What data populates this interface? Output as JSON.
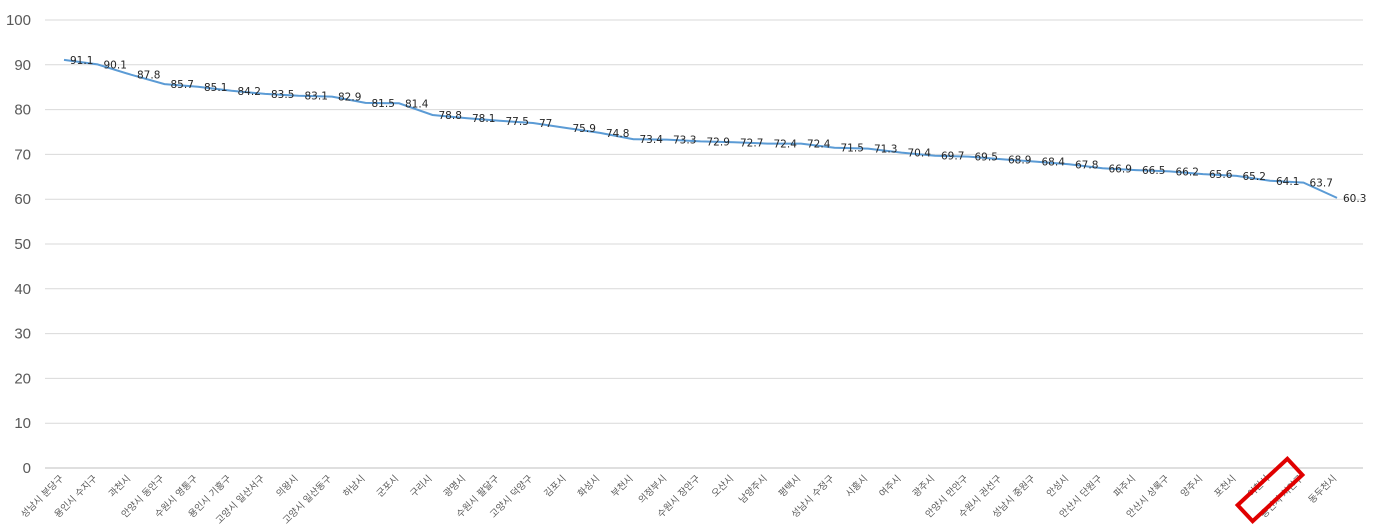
{
  "chart_data": {
    "type": "line",
    "categories": [
      "성남시 분당구",
      "용인시 수지구",
      "과천시",
      "안양시 동안구",
      "수원시 영통구",
      "용인시 기흥구",
      "고양시 일산서구",
      "의왕시",
      "고양시 일산동구",
      "하남시",
      "군포시",
      "구리시",
      "광명시",
      "수원시 팔달구",
      "고양시 덕양구",
      "김포시",
      "화성시",
      "부천시",
      "의정부시",
      "수원시 장안구",
      "오산시",
      "남양주시",
      "평택시",
      "성남시 수정구",
      "시흥시",
      "여주시",
      "광주시",
      "안양시 만안구",
      "수원시 권선구",
      "성남시 중원구",
      "안성시",
      "안산시 단원구",
      "파주시",
      "안산시 상록구",
      "양주시",
      "포천시",
      "이천시",
      "용인시 처인구",
      "동두천시"
    ],
    "series": [
      {
        "values": [
          91.1,
          90.1,
          87.8,
          85.7,
          85.1,
          84.2,
          83.5,
          83.1,
          82.9,
          81.5,
          81.4,
          78.8,
          78.1,
          77.5,
          77,
          75.9,
          74.8,
          73.4,
          73.3,
          72.9,
          72.7,
          72.4,
          72.4,
          71.5,
          71.3,
          70.4,
          69.7,
          69.5,
          68.9,
          68.4,
          67.8,
          66.9,
          66.5,
          66.2,
          65.6,
          65.2,
          64.1,
          63.7,
          60.3
        ],
        "color": "#5b9bd5"
      }
    ],
    "yticks": [
      "0",
      "10",
      "20",
      "30",
      "40",
      "50",
      "60",
      "70",
      "80",
      "90",
      "100"
    ],
    "ylim": [
      0,
      100
    ],
    "grid": true,
    "highlight": {
      "category": "이천시",
      "color": "#e00000"
    }
  }
}
